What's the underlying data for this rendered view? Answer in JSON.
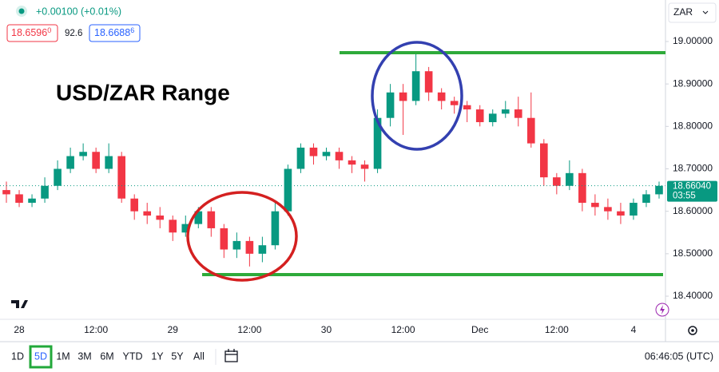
{
  "header": {
    "change": "+0.00100 (+0.01%)",
    "bid": "18.6596",
    "bid_pip": "0",
    "spread": "92.6",
    "ask": "18.6688",
    "ask_pip": "6"
  },
  "currency": "ZAR",
  "toolbar": {
    "ranges": [
      "1D",
      "5D",
      "1M",
      "3M",
      "6M",
      "YTD",
      "1Y",
      "5Y",
      "All"
    ],
    "clock": "06:46:05 (UTC)"
  },
  "chart_data": {
    "type": "candlestick",
    "annotation": "USD/ZAR Range",
    "categories": [
      null,
      "28",
      null,
      null,
      null,
      null,
      null,
      "12:00",
      null,
      null,
      null,
      null,
      null,
      "29",
      null,
      null,
      null,
      null,
      null,
      "12:00",
      null,
      null,
      null,
      null,
      null,
      "30",
      null,
      null,
      null,
      null,
      null,
      "12:00",
      null,
      null,
      null,
      null,
      null,
      "Dec",
      null,
      null,
      null,
      null,
      null,
      "12:00",
      null,
      null,
      null,
      null,
      null,
      "4",
      null,
      null
    ],
    "open": [
      18.65,
      18.64,
      18.62,
      18.63,
      18.66,
      18.7,
      18.73,
      18.74,
      18.7,
      18.73,
      18.63,
      18.6,
      18.59,
      18.58,
      18.55,
      18.57,
      18.6,
      18.56,
      18.51,
      18.53,
      18.5,
      18.52,
      18.6,
      18.7,
      18.75,
      18.73,
      18.74,
      18.72,
      18.71,
      18.7,
      18.82,
      18.88,
      18.86,
      18.93,
      18.88,
      18.86,
      18.85,
      18.84,
      18.81,
      18.83,
      18.84,
      18.82,
      18.76,
      18.68,
      18.66,
      18.69,
      18.62,
      18.61,
      18.6,
      18.59,
      18.62,
      18.64
    ],
    "high": [
      18.67,
      18.65,
      18.64,
      18.68,
      18.72,
      18.75,
      18.76,
      18.75,
      18.76,
      18.74,
      18.64,
      18.62,
      18.61,
      18.59,
      18.59,
      18.61,
      18.61,
      18.57,
      18.55,
      18.54,
      18.54,
      18.62,
      18.71,
      18.76,
      18.76,
      18.75,
      18.75,
      18.73,
      18.72,
      18.84,
      18.9,
      18.9,
      18.97,
      18.94,
      18.89,
      18.87,
      18.86,
      18.85,
      18.84,
      18.86,
      18.87,
      18.88,
      18.77,
      18.69,
      18.72,
      18.7,
      18.64,
      18.63,
      18.62,
      18.63,
      18.65,
      18.67
    ],
    "low": [
      18.62,
      18.61,
      18.61,
      18.62,
      18.65,
      18.69,
      18.72,
      18.69,
      18.69,
      18.62,
      18.58,
      18.57,
      18.56,
      18.53,
      18.54,
      18.56,
      18.54,
      18.49,
      18.49,
      18.47,
      18.48,
      18.51,
      18.59,
      18.69,
      18.71,
      18.72,
      18.7,
      18.69,
      18.67,
      18.69,
      18.8,
      18.78,
      18.85,
      18.86,
      18.84,
      18.83,
      18.81,
      18.8,
      18.8,
      18.82,
      18.8,
      18.75,
      18.66,
      18.64,
      18.65,
      18.6,
      18.59,
      18.58,
      18.57,
      18.58,
      18.61,
      18.63
    ],
    "close": [
      18.64,
      18.62,
      18.63,
      18.66,
      18.7,
      18.73,
      18.74,
      18.7,
      18.73,
      18.63,
      18.6,
      18.59,
      18.58,
      18.55,
      18.57,
      18.6,
      18.56,
      18.51,
      18.53,
      18.5,
      18.52,
      18.6,
      18.7,
      18.75,
      18.73,
      18.74,
      18.72,
      18.71,
      18.7,
      18.82,
      18.88,
      18.86,
      18.93,
      18.88,
      18.86,
      18.85,
      18.84,
      18.81,
      18.83,
      18.84,
      18.82,
      18.76,
      18.68,
      18.66,
      18.69,
      18.62,
      18.61,
      18.6,
      18.59,
      18.62,
      18.64,
      18.66
    ],
    "up_color": "#089981",
    "down_color": "#f23645",
    "ylim": [
      18.3455,
      19.0978
    ],
    "yticks": [
      {
        "value": 18.4,
        "label": "18.40000"
      },
      {
        "value": 18.5,
        "label": "18.50000"
      },
      {
        "value": 18.6,
        "label": "18.60000"
      },
      {
        "value": 18.7,
        "label": "18.70000"
      },
      {
        "value": 18.8,
        "label": "18.80000"
      },
      {
        "value": 18.9,
        "label": "18.90000"
      },
      {
        "value": 19,
        "label": "19.00000"
      }
    ],
    "grid": false,
    "last_price": {
      "value": 18.6604,
      "label": "18.66040"
    },
    "last_price_countdown": "03:55"
  }
}
